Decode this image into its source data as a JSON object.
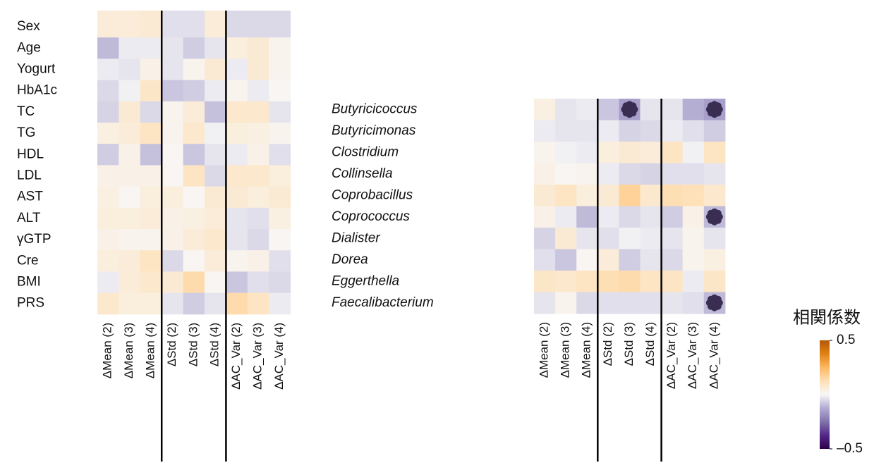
{
  "chart_data": [
    {
      "type": "heatmap",
      "rows": [
        "Sex",
        "Age",
        "Yogurt",
        "HbA1c",
        "TC",
        "TG",
        "HDL",
        "LDL",
        "AST",
        "ALT",
        "γGTP",
        "Cre",
        "BMI",
        "PRS"
      ],
      "columns": [
        "ΔMean (2)",
        "ΔMean (3)",
        "ΔMean (4)",
        "ΔStd (2)",
        "ΔStd (3)",
        "ΔStd (4)",
        "ΔAC_Var (2)",
        "ΔAC_Var (3)",
        "ΔAC_Var (4)"
      ],
      "italic_rows": false,
      "values": [
        [
          0.06,
          0.06,
          0.07,
          -0.04,
          -0.04,
          0.06,
          -0.05,
          -0.05,
          -0.05
        ],
        [
          -0.1,
          -0.02,
          -0.02,
          -0.03,
          -0.07,
          -0.03,
          0.05,
          0.07,
          0.02
        ],
        [
          -0.02,
          -0.03,
          0.03,
          -0.03,
          0.02,
          0.07,
          -0.02,
          0.07,
          0.02
        ],
        [
          -0.05,
          -0.01,
          0.09,
          -0.08,
          -0.07,
          -0.02,
          0.02,
          -0.02,
          0.01
        ],
        [
          -0.06,
          0.07,
          -0.05,
          0.02,
          0.06,
          -0.09,
          0.08,
          0.08,
          -0.03
        ],
        [
          0.04,
          0.06,
          0.1,
          0.02,
          0.08,
          -0.01,
          0.05,
          0.04,
          0.02
        ],
        [
          -0.07,
          0.03,
          -0.09,
          0.01,
          -0.08,
          -0.03,
          -0.02,
          0.03,
          -0.04
        ],
        [
          0.03,
          0.03,
          0.03,
          0.01,
          0.1,
          -0.05,
          0.08,
          0.08,
          0.05
        ],
        [
          0.04,
          0.01,
          0.05,
          0.05,
          0.01,
          0.07,
          0.07,
          0.05,
          0.07
        ],
        [
          0.05,
          0.05,
          0.06,
          0.03,
          0.04,
          0.06,
          -0.03,
          -0.04,
          0.04
        ],
        [
          0.03,
          0.02,
          0.02,
          0.03,
          0.06,
          0.08,
          -0.03,
          -0.05,
          0.01
        ],
        [
          0.05,
          0.06,
          0.1,
          -0.05,
          0.01,
          0.06,
          0.02,
          0.03,
          -0.04
        ],
        [
          -0.02,
          0.06,
          0.08,
          0.07,
          0.14,
          0.01,
          -0.08,
          -0.04,
          -0.05
        ],
        [
          0.08,
          0.05,
          0.05,
          -0.03,
          -0.07,
          -0.03,
          0.14,
          0.1,
          -0.02
        ]
      ],
      "significant": []
    },
    {
      "type": "heatmap",
      "rows": [
        "Butyricicoccus",
        "Butyricimonas",
        "Clostridium",
        "Collinsella",
        "Coprobacillus",
        "Coprococcus",
        "Dialister",
        "Dorea",
        "Eggerthella",
        "Faecalibacterium"
      ],
      "columns": [
        "ΔMean (2)",
        "ΔMean (3)",
        "ΔMean (4)",
        "ΔStd (2)",
        "ΔStd (3)",
        "ΔStd (4)",
        "ΔAC_Var (2)",
        "ΔAC_Var (3)",
        "ΔAC_Var (4)"
      ],
      "italic_rows": true,
      "values": [
        [
          0.04,
          -0.03,
          -0.02,
          -0.08,
          -0.15,
          -0.03,
          -0.03,
          -0.12,
          -0.15
        ],
        [
          -0.02,
          -0.03,
          -0.03,
          -0.02,
          -0.06,
          -0.05,
          -0.02,
          -0.04,
          -0.07
        ],
        [
          0.02,
          -0.01,
          -0.02,
          0.05,
          0.07,
          0.06,
          0.1,
          -0.01,
          0.1
        ],
        [
          0.03,
          0.01,
          0.02,
          -0.02,
          -0.05,
          -0.06,
          -0.04,
          -0.04,
          -0.03
        ],
        [
          0.07,
          0.1,
          0.05,
          0.07,
          0.17,
          0.08,
          0.13,
          0.12,
          0.08
        ],
        [
          0.03,
          -0.02,
          -0.1,
          -0.02,
          -0.05,
          -0.03,
          -0.07,
          0.03,
          -0.1
        ],
        [
          -0.06,
          0.07,
          -0.03,
          -0.04,
          -0.01,
          -0.02,
          -0.03,
          0.02,
          -0.03
        ],
        [
          -0.04,
          -0.08,
          0.01,
          0.06,
          -0.07,
          -0.03,
          -0.05,
          0.02,
          0.04
        ],
        [
          0.09,
          0.08,
          0.1,
          0.13,
          0.14,
          0.1,
          0.1,
          -0.02,
          0.09
        ],
        [
          -0.03,
          0.02,
          -0.05,
          -0.04,
          -0.04,
          -0.04,
          -0.03,
          -0.04,
          -0.1
        ]
      ],
      "significant": [
        [
          0,
          4
        ],
        [
          0,
          8
        ],
        [
          5,
          8
        ],
        [
          9,
          8
        ]
      ]
    }
  ],
  "colorbar": {
    "title": "相関係数",
    "lim": [
      -0.5,
      0.5
    ],
    "ticks": [
      0.5,
      {
        "value": -0.5,
        "label": "–0.5"
      }
    ],
    "colors": [
      "#2d004b",
      "#542788",
      "#8073ac",
      "#b2abd2",
      "#f7f7f7",
      "#fee0b6",
      "#fdb863",
      "#e08214",
      "#b35806"
    ]
  }
}
